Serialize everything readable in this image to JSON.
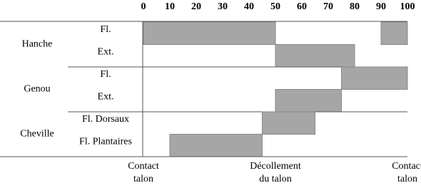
{
  "chart_data": {
    "type": "gantt",
    "xlim": [
      0,
      100
    ],
    "xticks": [
      0,
      10,
      20,
      30,
      40,
      50,
      60,
      70,
      80,
      90,
      100
    ],
    "color": "#a6a6a6",
    "groups": [
      {
        "name": "Hanche",
        "rows": [
          {
            "name": "Fl.",
            "spans": [
              [
                0,
                50
              ],
              [
                90,
                100
              ]
            ]
          },
          {
            "name": "Ext.",
            "spans": [
              [
                50,
                80
              ]
            ]
          }
        ]
      },
      {
        "name": "Genou",
        "rows": [
          {
            "name": "Fl.",
            "spans": [
              [
                75,
                100
              ]
            ]
          },
          {
            "name": "Ext.",
            "spans": [
              [
                50,
                75
              ]
            ]
          }
        ]
      },
      {
        "name": "Cheville",
        "rows": [
          {
            "name": "Fl. Dorsaux",
            "spans": [
              [
                45,
                65
              ]
            ]
          },
          {
            "name": "Fl. Plantaires",
            "spans": [
              [
                10,
                45
              ]
            ]
          }
        ]
      }
    ],
    "annotations": [
      {
        "x": 0,
        "lines": [
          "Contact",
          "talon"
        ]
      },
      {
        "x": 50,
        "lines": [
          "Décollement",
          "du talon"
        ]
      },
      {
        "x": 100,
        "lines": [
          "Contact",
          "talon"
        ]
      }
    ]
  }
}
